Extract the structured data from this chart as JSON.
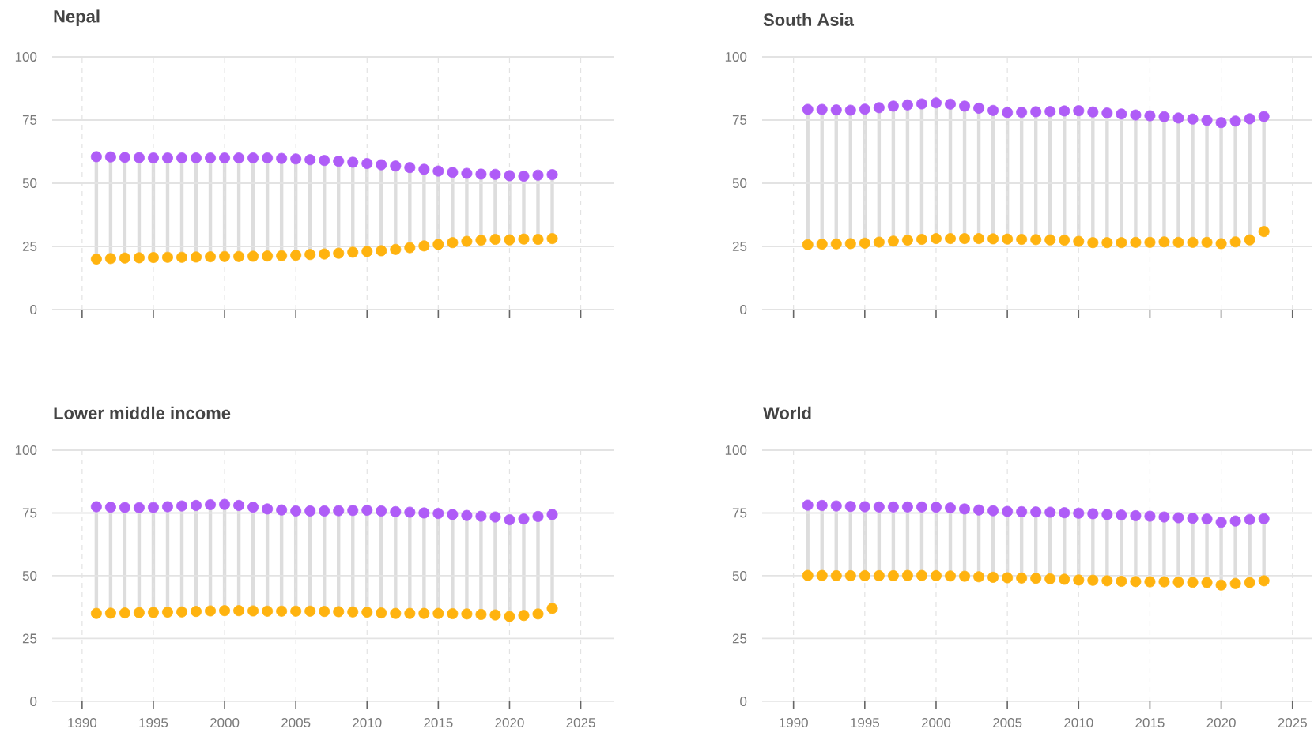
{
  "chart_data": [
    {
      "type": "scatter",
      "title": "Nepal",
      "x": [
        1991,
        1992,
        1993,
        1994,
        1995,
        1996,
        1997,
        1998,
        1999,
        2000,
        2001,
        2002,
        2003,
        2004,
        2005,
        2006,
        2007,
        2008,
        2009,
        2010,
        2011,
        2012,
        2013,
        2014,
        2015,
        2016,
        2017,
        2018,
        2019,
        2020,
        2021,
        2022,
        2023
      ],
      "series": [
        {
          "color": "#af5cf7",
          "values": [
            60.5,
            60.4,
            60.2,
            60.1,
            60,
            60,
            60,
            60,
            60,
            60,
            60,
            60,
            60,
            59.8,
            59.6,
            59.3,
            59,
            58.7,
            58.3,
            57.8,
            57.3,
            56.8,
            56.2,
            55.5,
            54.8,
            54.3,
            53.9,
            53.6,
            53.5,
            53,
            52.8,
            53.2,
            53.4
          ]
        },
        {
          "color": "#ffb30f",
          "values": [
            20,
            20.2,
            20.4,
            20.5,
            20.6,
            20.7,
            20.7,
            20.8,
            20.9,
            21,
            21,
            21.1,
            21.2,
            21.3,
            21.5,
            21.8,
            22,
            22.3,
            22.7,
            23,
            23.3,
            23.8,
            24.5,
            25.2,
            25.8,
            26.5,
            27,
            27.5,
            27.8,
            27.6,
            27.9,
            27.8,
            28.1
          ]
        }
      ],
      "xlim": [
        1987.9,
        2027.3
      ],
      "xticks": [
        1990,
        1995,
        2000,
        2005,
        2010,
        2015,
        2020,
        2025
      ],
      "ylim": [
        0,
        100
      ],
      "yticks": [
        0,
        25,
        50,
        75,
        100
      ],
      "grid": true,
      "marker": "circle",
      "tick_labels": "y"
    },
    {
      "type": "scatter",
      "title": "South Asia",
      "x": [
        1991,
        1992,
        1993,
        1994,
        1995,
        1996,
        1997,
        1998,
        1999,
        2000,
        2001,
        2002,
        2003,
        2004,
        2005,
        2006,
        2007,
        2008,
        2009,
        2010,
        2011,
        2012,
        2013,
        2014,
        2015,
        2016,
        2017,
        2018,
        2019,
        2020,
        2021,
        2022,
        2023
      ],
      "series": [
        {
          "color": "#af5cf7",
          "values": [
            79.2,
            79.2,
            79,
            78.9,
            79.3,
            79.9,
            80.5,
            81,
            81.4,
            81.8,
            81.3,
            80.5,
            79.7,
            78.8,
            78,
            78.1,
            78.3,
            78.4,
            78.6,
            78.7,
            78.2,
            77.8,
            77.4,
            77,
            76.7,
            76.3,
            75.8,
            75.4,
            74.9,
            74,
            74.6,
            75.5,
            76.4
          ]
        },
        {
          "color": "#ffb30f",
          "values": [
            25.7,
            25.9,
            26,
            26.1,
            26.3,
            26.7,
            27.1,
            27.5,
            27.8,
            28.1,
            28.1,
            28.1,
            28.1,
            28,
            27.9,
            27.8,
            27.7,
            27.6,
            27.5,
            27,
            26.5,
            26.5,
            26.5,
            26.6,
            26.6,
            26.8,
            26.6,
            26.6,
            26.6,
            26.1,
            26.8,
            27.6,
            30.9
          ]
        }
      ],
      "xlim": [
        1987.8,
        2026.4
      ],
      "xticks": [
        1990,
        1995,
        2000,
        2005,
        2010,
        2015,
        2020,
        2025
      ],
      "ylim": [
        0,
        100
      ],
      "yticks": [
        0,
        25,
        50,
        75,
        100
      ],
      "grid": true,
      "marker": "circle",
      "tick_labels": "y"
    },
    {
      "type": "scatter",
      "title": "Lower middle income",
      "x": [
        1991,
        1992,
        1993,
        1994,
        1995,
        1996,
        1997,
        1998,
        1999,
        2000,
        2001,
        2002,
        2003,
        2004,
        2005,
        2006,
        2007,
        2008,
        2009,
        2010,
        2011,
        2012,
        2013,
        2014,
        2015,
        2016,
        2017,
        2018,
        2019,
        2020,
        2021,
        2022,
        2023
      ],
      "series": [
        {
          "color": "#af5cf7",
          "values": [
            77.5,
            77.3,
            77.2,
            77.1,
            77.2,
            77.5,
            77.8,
            78,
            78.3,
            78.4,
            78,
            77.3,
            76.6,
            76.2,
            75.8,
            75.8,
            75.8,
            75.9,
            76,
            76.1,
            75.8,
            75.5,
            75.3,
            75,
            74.8,
            74.4,
            74,
            73.7,
            73.4,
            72.3,
            72.6,
            73.6,
            74.4
          ]
        },
        {
          "color": "#ffb30f",
          "values": [
            35,
            35.1,
            35.2,
            35.3,
            35.4,
            35.5,
            35.6,
            35.8,
            36,
            36.1,
            36.1,
            36,
            35.9,
            35.9,
            35.9,
            35.9,
            35.8,
            35.7,
            35.6,
            35.5,
            35.2,
            35,
            35,
            35,
            35,
            34.9,
            34.8,
            34.6,
            34.4,
            33.8,
            34.2,
            34.8,
            37
          ]
        }
      ],
      "xlim": [
        1987.9,
        2027.3
      ],
      "xticks": [
        1990,
        1995,
        2000,
        2005,
        2010,
        2015,
        2020,
        2025
      ],
      "ylim": [
        0,
        100
      ],
      "yticks": [
        0,
        25,
        50,
        75,
        100
      ],
      "grid": true,
      "marker": "circle"
    },
    {
      "type": "scatter",
      "title": "World",
      "x": [
        1991,
        1992,
        1993,
        1994,
        1995,
        1996,
        1997,
        1998,
        1999,
        2000,
        2001,
        2002,
        2003,
        2004,
        2005,
        2006,
        2007,
        2008,
        2009,
        2010,
        2011,
        2012,
        2013,
        2014,
        2015,
        2016,
        2017,
        2018,
        2019,
        2020,
        2021,
        2022,
        2023
      ],
      "series": [
        {
          "color": "#af5cf7",
          "values": [
            78.1,
            78,
            77.8,
            77.6,
            77.5,
            77.4,
            77.4,
            77.4,
            77.4,
            77.3,
            77,
            76.6,
            76.2,
            75.9,
            75.6,
            75.5,
            75.4,
            75.3,
            75.1,
            74.9,
            74.7,
            74.4,
            74.2,
            73.9,
            73.7,
            73.4,
            73.1,
            72.9,
            72.6,
            71.3,
            71.8,
            72.4,
            72.7
          ]
        },
        {
          "color": "#ffb30f",
          "values": [
            50.1,
            50.1,
            50,
            50,
            50,
            50,
            50,
            50.1,
            50.1,
            50,
            49.9,
            49.8,
            49.6,
            49.4,
            49.2,
            49.1,
            49,
            48.8,
            48.6,
            48.3,
            48.2,
            48,
            47.8,
            47.7,
            47.6,
            47.6,
            47.5,
            47.4,
            47.3,
            46.3,
            46.9,
            47.3,
            48
          ]
        }
      ],
      "xlim": [
        1987.8,
        2026.4
      ],
      "xticks": [
        1990,
        1995,
        2000,
        2005,
        2010,
        2015,
        2020,
        2025
      ],
      "ylim": [
        0,
        100
      ],
      "yticks": [
        0,
        25,
        50,
        75,
        100
      ],
      "grid": true,
      "marker": "circle"
    }
  ]
}
